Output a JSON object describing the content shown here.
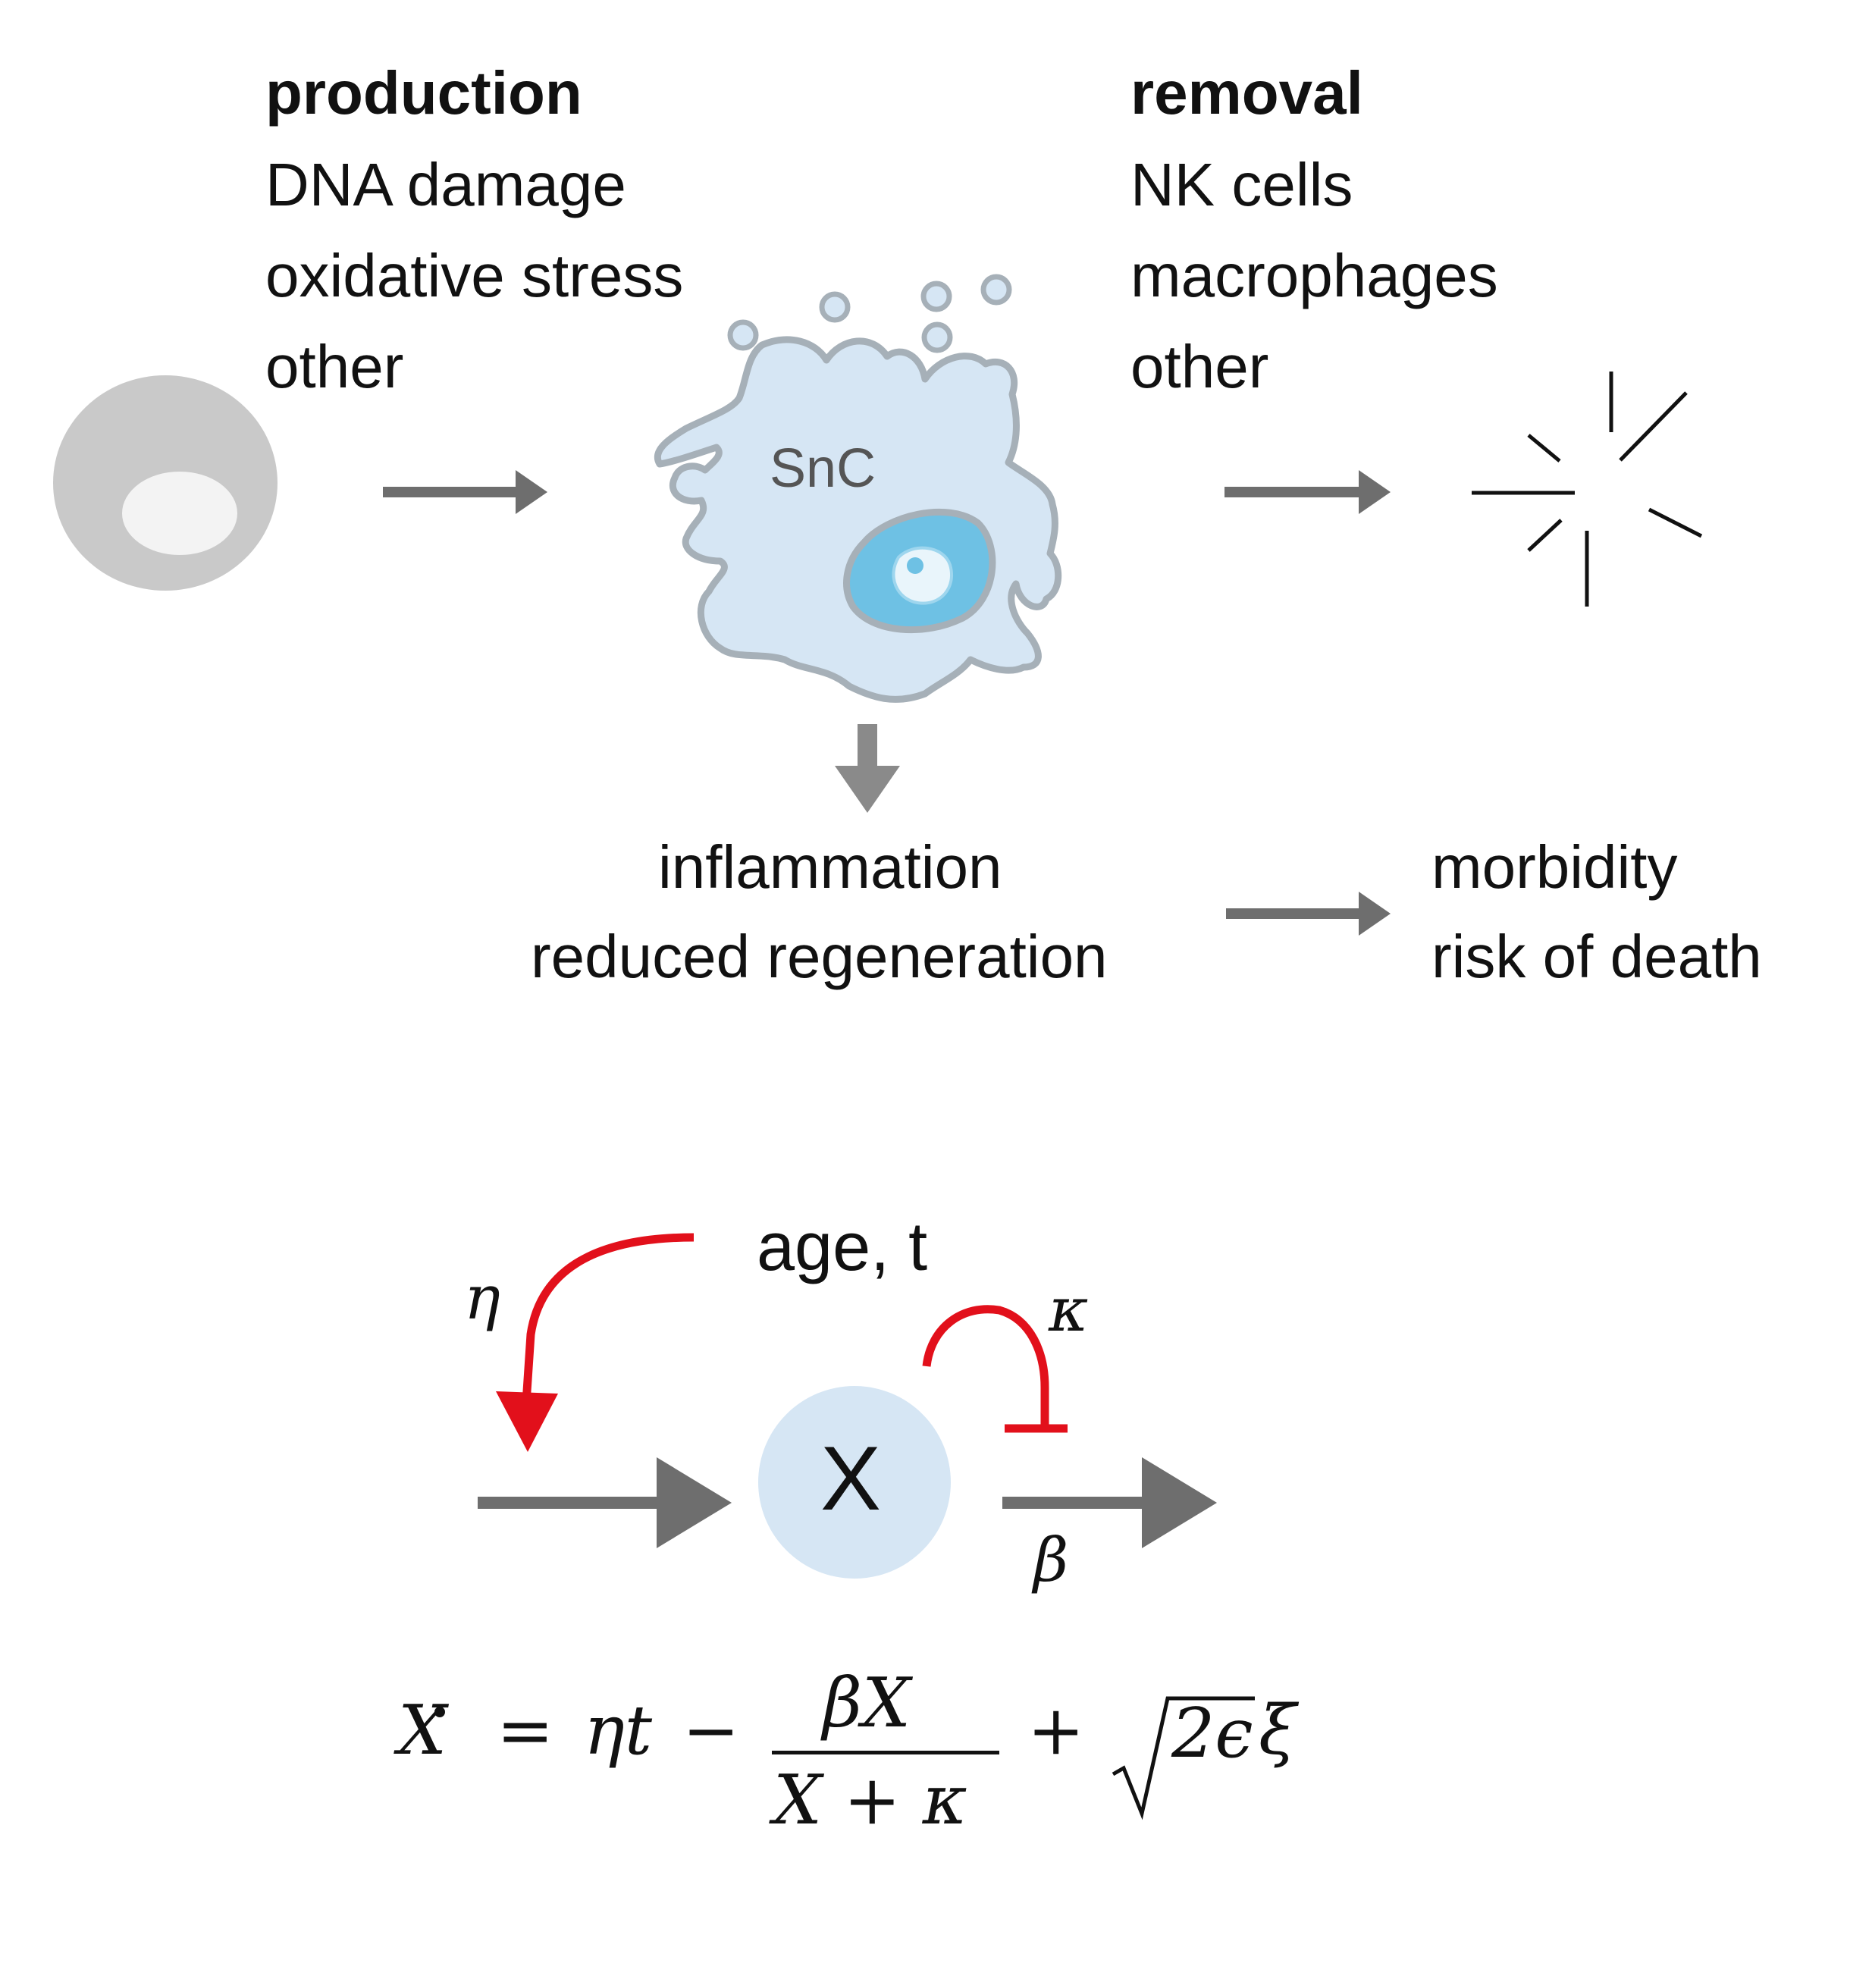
{
  "production": {
    "heading": "production",
    "items": [
      "DNA damage",
      "oxidative stress",
      "other"
    ]
  },
  "removal": {
    "heading": "removal",
    "items": [
      "NK cells",
      "macrophages",
      "other"
    ]
  },
  "snc": {
    "label": "SnC"
  },
  "effects": {
    "lines": [
      "inflammation",
      "reduced regeneration"
    ]
  },
  "outcomes": {
    "lines": [
      "morbidity",
      "risk of death"
    ]
  },
  "model": {
    "age_label": "age, t",
    "node_label": "X",
    "eta": "η",
    "kappa": "κ",
    "beta": "β"
  },
  "equation": {
    "lhs": "X",
    "op_eq": "=",
    "term1": "ηt",
    "op_minus": "−",
    "numerator": "βX",
    "denominator": "X + κ",
    "op_plus": "+",
    "radicand": "2ϵ",
    "tail": "ξ"
  },
  "colors": {
    "arrow_gray": "#6e6e6e",
    "inhibit_red": "#e2101b",
    "cell_fill": "#d6e6f4",
    "cell_outline": "#a6b0b8",
    "nucleus": "#6ec1e4",
    "normal_cell": "#c9c9c9",
    "node_fill": "#d6e6f4"
  }
}
